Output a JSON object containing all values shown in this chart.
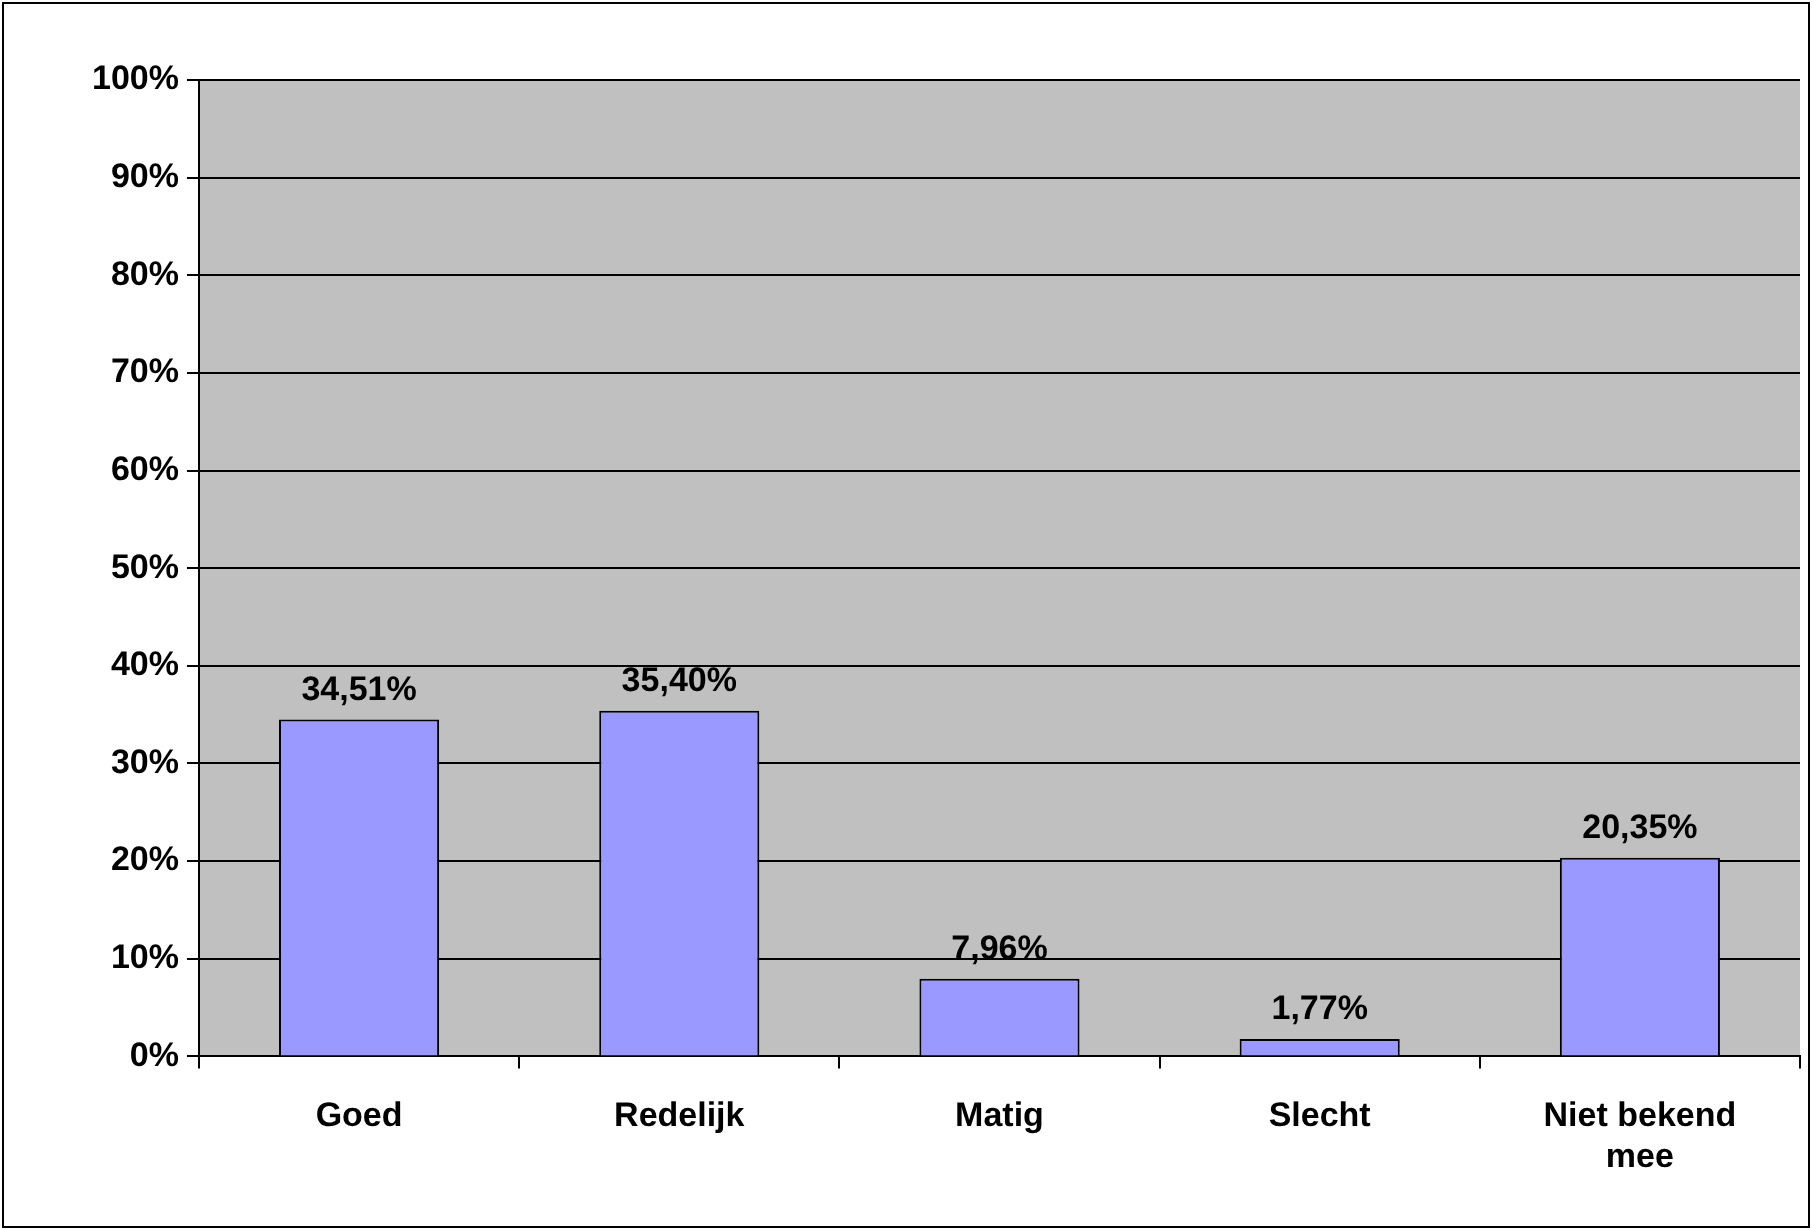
{
  "chart_data": {
    "type": "bar",
    "categories": [
      "Goed",
      "Redelijk",
      "Matig",
      "Slecht",
      "Niet bekend mee"
    ],
    "values": [
      34.51,
      35.4,
      7.96,
      1.77,
      20.35
    ],
    "value_labels": [
      "34,51%",
      "35,40%",
      "7,96%",
      "1,77%",
      "20,35%"
    ],
    "color": "#9999ff",
    "ylim": [
      0,
      100
    ],
    "yticks": [
      {
        "value": 0,
        "label": "0%"
      },
      {
        "value": 10,
        "label": "10%"
      },
      {
        "value": 20,
        "label": "20%"
      },
      {
        "value": 30,
        "label": "30%"
      },
      {
        "value": 40,
        "label": "40%"
      },
      {
        "value": 50,
        "label": "50%"
      },
      {
        "value": 60,
        "label": "60%"
      },
      {
        "value": 70,
        "label": "70%"
      },
      {
        "value": 80,
        "label": "80%"
      },
      {
        "value": 90,
        "label": "90%"
      },
      {
        "value": 100,
        "label": "100%"
      }
    ],
    "grid": "y",
    "legend": false
  }
}
